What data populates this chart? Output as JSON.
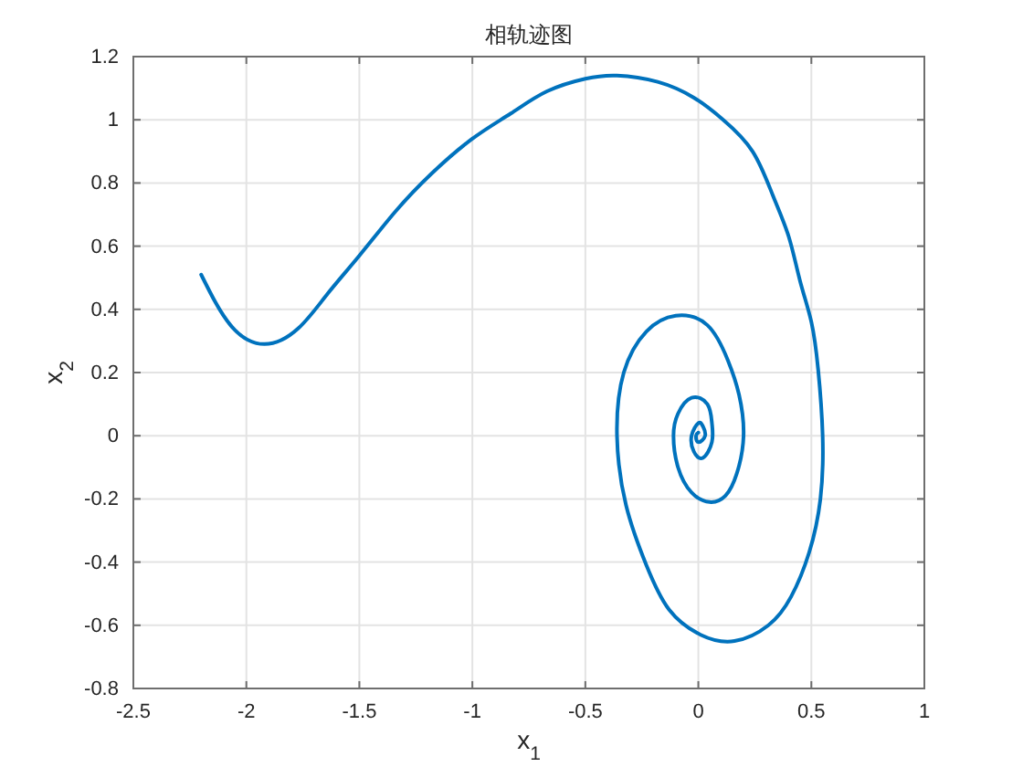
{
  "chart_data": {
    "type": "line",
    "title": "相轨迹图",
    "xlabel": "x$_{1}$",
    "ylabel": "x$_{2}$",
    "x": [
      -2.2,
      -2.07,
      -1.92,
      -1.77,
      -1.64,
      -1.5,
      -1.34,
      -1.18,
      -1.0,
      -0.83,
      -0.67,
      -0.5,
      -0.36,
      -0.18,
      -0.02,
      0.11,
      0.24,
      0.33,
      0.4,
      0.45,
      0.5,
      0.53,
      0.55,
      0.54,
      0.49,
      0.41,
      0.31,
      0.16,
      0.01,
      -0.13,
      -0.23,
      -0.32,
      -0.36,
      -0.33,
      -0.23,
      -0.1,
      0.04,
      0.13,
      0.18,
      0.2,
      0.17,
      0.12,
      0.05,
      -0.03,
      -0.09,
      -0.11,
      -0.09,
      -0.03,
      0.04,
      0.06,
      0.06,
      0.02,
      -0.02,
      -0.03,
      0.0,
      0.02,
      0.03,
      0.0,
      -0.01,
      0.0
    ],
    "series": [
      {
        "color": "#0072bd",
        "values": [
          0.51,
          0.35,
          0.29,
          0.34,
          0.45,
          0.57,
          0.71,
          0.83,
          0.94,
          1.02,
          1.09,
          1.13,
          1.14,
          1.12,
          1.07,
          1.0,
          0.9,
          0.76,
          0.63,
          0.49,
          0.36,
          0.21,
          0.0,
          -0.2,
          -0.37,
          -0.51,
          -0.6,
          -0.65,
          -0.63,
          -0.55,
          -0.41,
          -0.22,
          0.0,
          0.2,
          0.33,
          0.38,
          0.35,
          0.24,
          0.13,
          0.0,
          -0.12,
          -0.19,
          -0.21,
          -0.18,
          -0.1,
          0.0,
          0.07,
          0.12,
          0.1,
          0.04,
          -0.02,
          -0.07,
          -0.05,
          0.0,
          0.04,
          0.03,
          0.0,
          -0.02,
          0.0,
          0.01
        ]
      }
    ],
    "xlim": [
      -2.5,
      1
    ],
    "xticks": [
      -2.5,
      -2,
      -1.5,
      -1,
      -0.5,
      0,
      0.5,
      1
    ],
    "ylim": [
      -0.8,
      1.2
    ],
    "yticks": [
      -0.8,
      -0.6,
      -0.4,
      -0.2,
      0,
      0.2,
      0.4,
      0.6,
      0.8,
      1,
      1.2
    ],
    "grid": true
  }
}
